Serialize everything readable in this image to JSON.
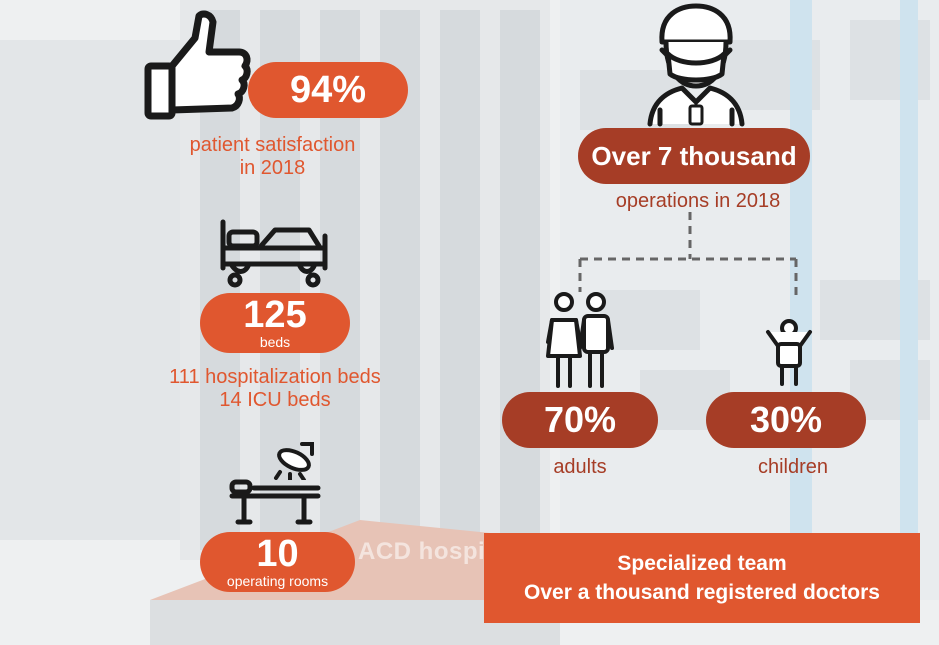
{
  "background": {
    "sign_text": "ACD hospit"
  },
  "colors": {
    "orange": "#e0572f",
    "brown": "#a63d26",
    "icon": "#1a1a1a"
  },
  "satisfaction": {
    "icon": "thumbs-up-icon",
    "value": "94%",
    "label_line1": "patient satisfaction",
    "label_line2": "in 2018"
  },
  "beds": {
    "icon": "hospital-bed-icon",
    "value": "125",
    "unit": "beds",
    "detail_line1": "111 hospitalization beds",
    "detail_line2": "14 ICU beds"
  },
  "operating_rooms": {
    "icon": "operating-table-icon",
    "value": "10",
    "unit": "operating rooms"
  },
  "operations": {
    "icon": "surgeon-icon",
    "value": "Over 7 thousand",
    "label": "operations in 2018"
  },
  "adults": {
    "icon": "adults-icon",
    "value": "70%",
    "label": "adults"
  },
  "children": {
    "icon": "child-icon",
    "value": "30%",
    "label": "children"
  },
  "team": {
    "line1": "Specialized team",
    "line2": "Over a thousand registered doctors"
  }
}
